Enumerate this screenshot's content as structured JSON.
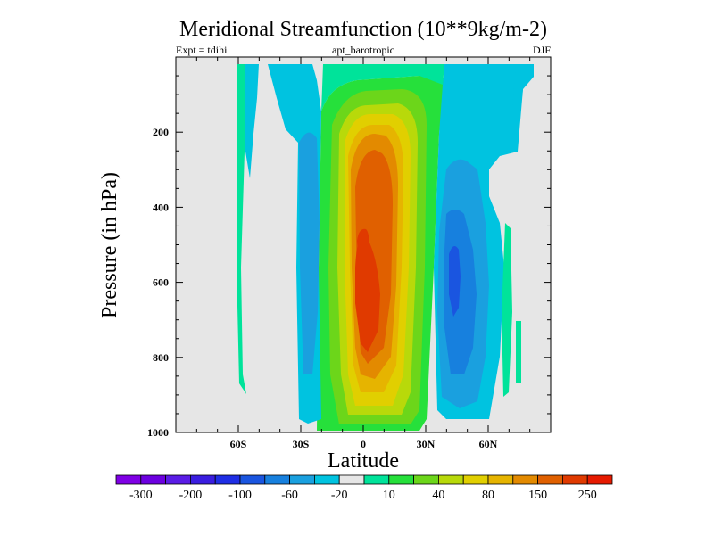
{
  "colors": {
    "background": "#ffffff",
    "plot_bg": "#e6e6e6",
    "frame": "#000000",
    "palette": [
      "#7f00e5",
      "#6c00e0",
      "#5a1ce6",
      "#3a1de0",
      "#1f2ee5",
      "#1a55e0",
      "#1780de",
      "#1aa0df",
      "#00c3e0",
      "#e6e6e6",
      "#00e39a",
      "#26e03b",
      "#6cd61a",
      "#b8d90a",
      "#e1cf00",
      "#e6b400",
      "#e38a00",
      "#e06000",
      "#e03a00",
      "#e61a00"
    ]
  },
  "chart_data": {
    "type": "contour",
    "title": "Meridional Streamfunction (10**9kg/m-2)",
    "left_label": "Expt = tdihi",
    "center_label": "apt_barotropic",
    "right_label": "DJF",
    "xlabel": "Latitude",
    "ylabel": "Pressure (in hPa)",
    "xlim": [
      -90,
      90
    ],
    "ylim": [
      1000,
      0
    ],
    "x_ticks": [
      {
        "value": -60,
        "label": "60S"
      },
      {
        "value": -30,
        "label": "30S"
      },
      {
        "value": 0,
        "label": "0"
      },
      {
        "value": 30,
        "label": "30N"
      },
      {
        "value": 60,
        "label": "60N"
      }
    ],
    "y_ticks": [
      {
        "value": 200,
        "label": "200"
      },
      {
        "value": 400,
        "label": "400"
      },
      {
        "value": 600,
        "label": "600"
      },
      {
        "value": 800,
        "label": "800"
      },
      {
        "value": 1000,
        "label": "1000"
      }
    ],
    "contour_levels": [
      -300,
      -250,
      -200,
      -150,
      -100,
      -80,
      -60,
      -40,
      -20,
      -10,
      10,
      20,
      40,
      60,
      80,
      100,
      150,
      200,
      250
    ],
    "legend_labels": [
      "-300",
      "-200",
      "-100",
      "-60",
      "-20",
      "10",
      "40",
      "80",
      "150",
      "250"
    ],
    "features": [
      {
        "sign": "positive",
        "lat_center": 0,
        "p_center": 550,
        "peak_level": 250,
        "extent_lat": [
          -18,
          28
        ],
        "extent_p": [
          50,
          1000
        ]
      },
      {
        "sign": "negative",
        "lat_center": 42,
        "p_center": 550,
        "peak_level": -60,
        "extent_lat": [
          28,
          65
        ],
        "extent_p": [
          60,
          950
        ]
      },
      {
        "sign": "negative",
        "lat_center": -25,
        "p_center": 550,
        "peak_level": -20,
        "extent_lat": [
          -32,
          -18
        ],
        "extent_p": [
          200,
          1000
        ]
      },
      {
        "sign": "negative",
        "lat_center": -50,
        "p_center": 250,
        "peak_level": -10,
        "extent_lat": [
          -55,
          -40
        ],
        "extent_p": [
          0,
          400
        ]
      },
      {
        "sign": "positive",
        "lat_center": -58,
        "p_center": 500,
        "peak_level": 10,
        "extent_lat": [
          -60,
          -56
        ],
        "extent_p": [
          0,
          900
        ]
      },
      {
        "sign": "positive",
        "lat_center": 72,
        "p_center": 700,
        "peak_level": 10,
        "extent_lat": [
          70,
          76
        ],
        "extent_p": [
          400,
          1000
        ]
      }
    ]
  }
}
